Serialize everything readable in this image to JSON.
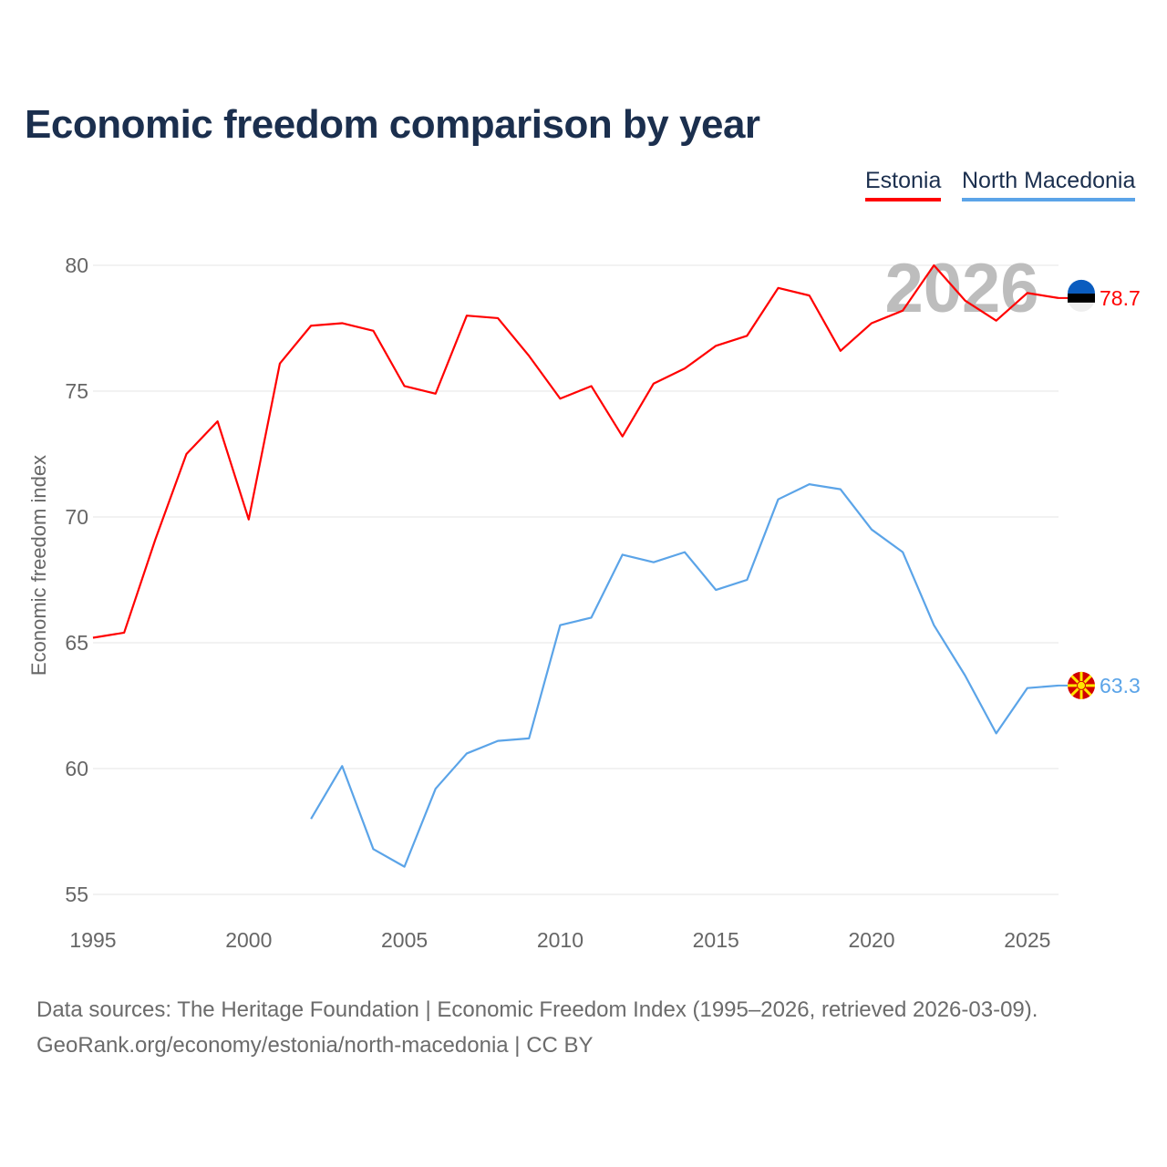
{
  "chart_data": {
    "type": "line",
    "title": "Economic freedom comparison by year",
    "ylabel": "Economic freedom index",
    "xlabel": "",
    "ylim": [
      55,
      80
    ],
    "xlim": [
      1995,
      2026
    ],
    "yticks": [
      55,
      60,
      65,
      70,
      75,
      80
    ],
    "xticks": [
      1995,
      2000,
      2005,
      2010,
      2015,
      2020,
      2025
    ],
    "watermark_year": "2026",
    "legend": "top-right",
    "series": [
      {
        "name": "Estonia",
        "color": "#ff0000",
        "end_label": "78.7",
        "x": [
          1995,
          1996,
          1997,
          1998,
          1999,
          2000,
          2001,
          2002,
          2003,
          2004,
          2005,
          2006,
          2007,
          2008,
          2009,
          2010,
          2011,
          2012,
          2013,
          2014,
          2015,
          2016,
          2017,
          2018,
          2019,
          2020,
          2021,
          2022,
          2023,
          2024,
          2025,
          2026
        ],
        "values": [
          65.2,
          65.4,
          69.1,
          72.5,
          73.8,
          69.9,
          76.1,
          77.6,
          77.7,
          77.4,
          75.2,
          74.9,
          78.0,
          77.9,
          76.4,
          74.7,
          75.2,
          73.2,
          75.3,
          75.9,
          76.8,
          77.2,
          79.1,
          78.8,
          76.6,
          77.7,
          78.2,
          80.0,
          78.6,
          77.8,
          78.9,
          78.7
        ]
      },
      {
        "name": "North Macedonia",
        "color": "#5ba4e8",
        "end_label": "63.3",
        "x": [
          2002,
          2003,
          2004,
          2005,
          2006,
          2007,
          2008,
          2009,
          2010,
          2011,
          2012,
          2013,
          2014,
          2015,
          2016,
          2017,
          2018,
          2019,
          2020,
          2021,
          2022,
          2023,
          2024,
          2025,
          2026
        ],
        "values": [
          58.0,
          60.1,
          56.8,
          56.1,
          59.2,
          60.6,
          61.1,
          61.2,
          65.7,
          66.0,
          68.5,
          68.2,
          68.6,
          67.1,
          67.5,
          70.7,
          71.3,
          71.1,
          69.5,
          68.6,
          65.7,
          63.7,
          61.4,
          63.2,
          63.3
        ]
      }
    ]
  },
  "source": {
    "line1": "Data sources: The Heritage Foundation | Economic Freedom Index (1995–2026, retrieved 2026-03-09).",
    "line2": "GeoRank.org/economy/estonia/north-macedonia | CC BY"
  }
}
